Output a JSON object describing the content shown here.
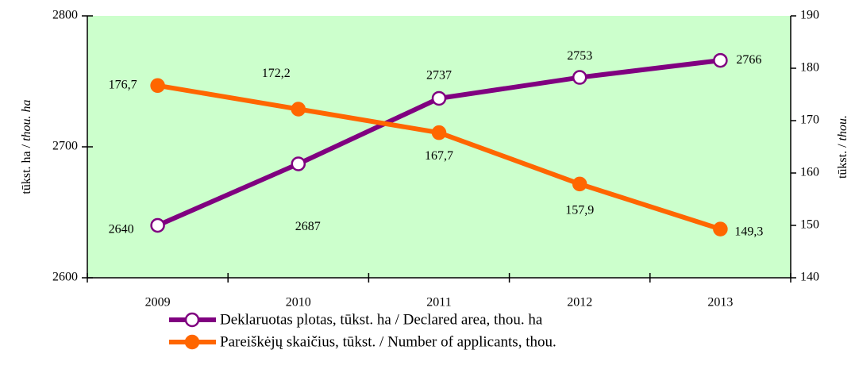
{
  "chart_data": {
    "type": "line",
    "categories": [
      "2009",
      "2010",
      "2011",
      "2012",
      "2013"
    ],
    "y_label": [
      "tūkst. ha / ",
      "thou. ha"
    ],
    "y2_label": [
      "tūkst. / ",
      "thou."
    ],
    "ylim": [
      2600,
      2800
    ],
    "yticks": [
      2600,
      2700,
      2800
    ],
    "y2lim": [
      140,
      190
    ],
    "y2ticks": [
      140,
      150,
      160,
      170,
      180,
      190
    ],
    "background": "#ccffcc",
    "series": [
      {
        "name": "Deklaruotas plotas, tūkst. ha / Declared area, thou. ha",
        "color": "#800080",
        "marker": "hollow",
        "values": [
          2640,
          2687,
          2737,
          2753,
          2766
        ]
      },
      {
        "name": "Pareiškėjų skaičius, tūkst. / Number of applicants, thou.",
        "color": "#ff6600",
        "marker": "filled",
        "axis": "y2",
        "values": [
          176.7,
          172.2,
          167.7,
          157.9,
          149.3
        ],
        "value_labels": [
          "176,7",
          "172,2",
          "167,7",
          "157,9",
          "149,3"
        ]
      }
    ]
  }
}
